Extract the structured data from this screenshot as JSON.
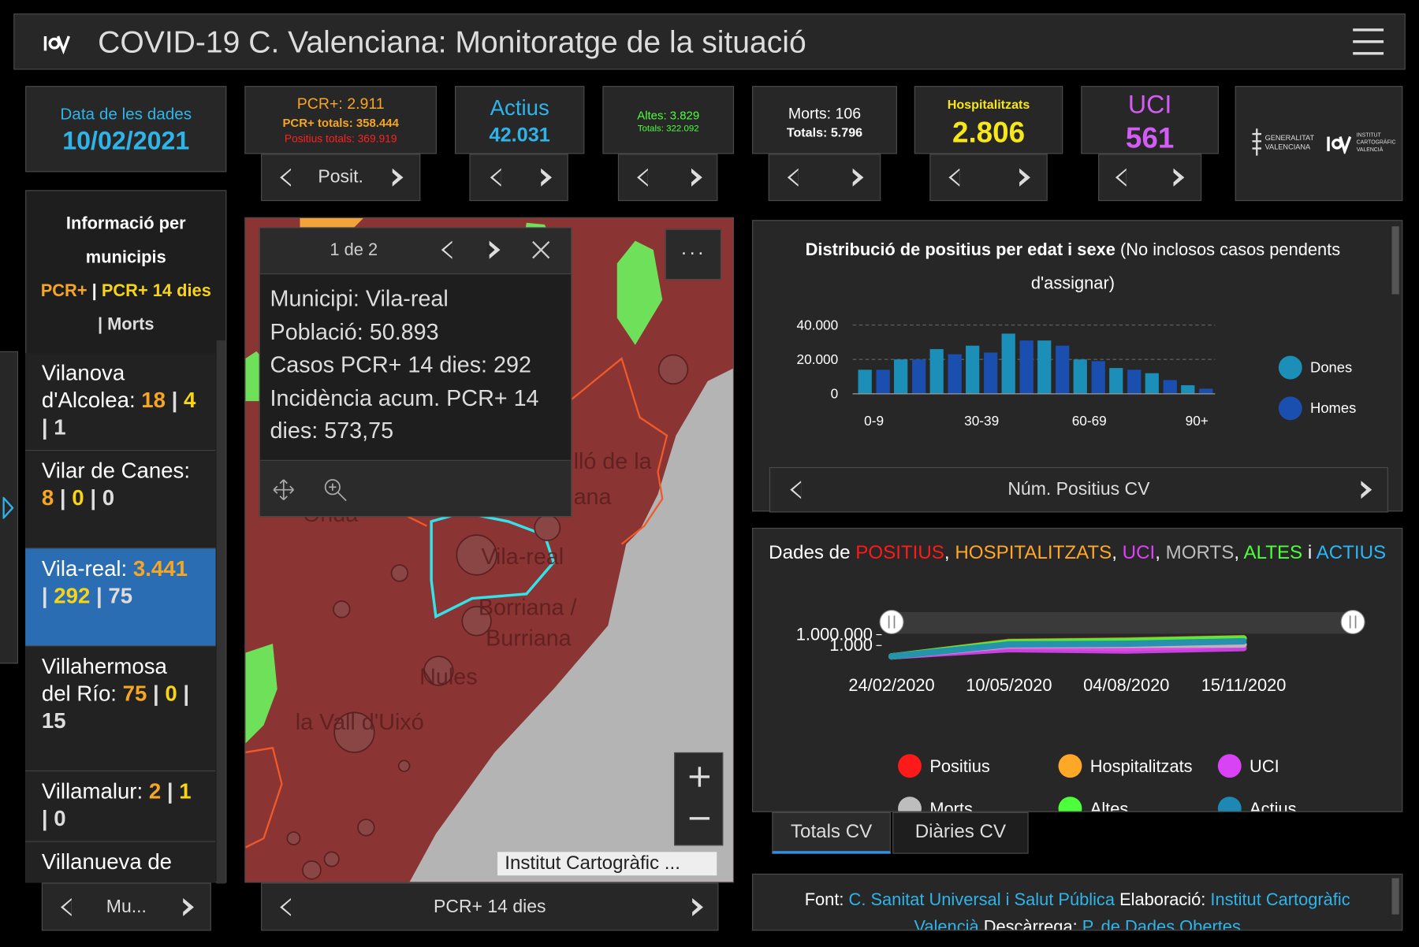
{
  "header": {
    "title": "COVID-19 C. Valenciana: Monitoratge de la situació"
  },
  "cards": {
    "date": {
      "label": "Data de les dades",
      "value": "10/02/2021"
    },
    "pcr": {
      "line1": "PCR+: 2.911",
      "line2": "PCR+ totals: 358.444",
      "line3": "Positius totals: 369.919",
      "nav": "Posit."
    },
    "actius": {
      "label": "Actius",
      "value": "42.031"
    },
    "altes": {
      "line1": "Altes: 3.829",
      "line2": "Totals: 322.092"
    },
    "morts": {
      "line1": "Morts: 106",
      "line2": "Totals: 5.796"
    },
    "hospitalitzats": {
      "label": "Hospitalitzats",
      "value": "2.806"
    },
    "uci": {
      "label": "UCI",
      "value": "561"
    },
    "logos": {
      "gva": [
        "GENERALITAT",
        "VALENCIANA"
      ],
      "icv": [
        "INSTITUT",
        "CARTOGRÀFIC",
        "VALENCIÀ"
      ]
    }
  },
  "sidebar": {
    "title": [
      "Informació per",
      "municipis"
    ],
    "legend": {
      "pcr": "PCR+",
      "sep": "|",
      "pcr14": "PCR+ 14 dies",
      "morts": "| Morts"
    },
    "separator": "|",
    "items": [
      {
        "label": "Vilanova d'Alcolea:",
        "pcr": "18",
        "pcr14": "4",
        "morts": "1"
      },
      {
        "label": "Vilar de Canes:",
        "pcr": "8",
        "pcr14": "0",
        "morts": "0"
      },
      {
        "label": "Vila-real:",
        "pcr": "3.441",
        "pcr14": "292",
        "morts": "75",
        "selected": true
      },
      {
        "label": "Villahermosa del Río:",
        "pcr": "75",
        "pcr14": "0",
        "morts": "15"
      },
      {
        "label": "Villamalur:",
        "pcr": "2",
        "pcr14": "1",
        "morts": "0"
      },
      {
        "label": "Villanueva de"
      }
    ],
    "nav": "Mu..."
  },
  "map": {
    "popup": {
      "counter": "1 de 2",
      "lines": [
        "Municipi: Vila-real",
        "Població: 50.893",
        "Casos PCR+ 14 dies: 292",
        "Incidència acum. PCR+ 14 dies: 573,75"
      ]
    },
    "labels": [
      "lló de la",
      "ana",
      "Onda",
      "Vila-real",
      "Borriana /",
      "Burriana",
      "Nules",
      "la Vall d'Uixó"
    ],
    "attribution": "Institut Cartogràfic ...",
    "nav": "PCR+ 14 dies"
  },
  "age_panel": {
    "nav": "Núm. Positius CV"
  },
  "tabs": [
    "Totals CV",
    "Diàries CV"
  ],
  "footer": {
    "font": "Font:",
    "font_link": "C. Sanitat Universal i Salut Pública",
    "elab": "Elaboració:",
    "elab_link": "Institut Cartogràfic Valencià",
    "desc": "Descàrrega:",
    "desc_link": "P. de Dades Obertes"
  },
  "chart_data": [
    {
      "type": "bar",
      "title": "Distribució de positius per edat i sexe",
      "subtitle": "(No inclosos casos pendents d'assignar)",
      "categories": [
        "0-9",
        null,
        null,
        "30-39",
        null,
        null,
        "60-69",
        null,
        null,
        "90+"
      ],
      "series": [
        {
          "name": "Dones",
          "color": "#1b8fb8",
          "values": [
            14000,
            20000,
            26000,
            28000,
            35000,
            31000,
            20000,
            15000,
            12000,
            5000
          ]
        },
        {
          "name": "Homes",
          "color": "#1a4fb0",
          "values": [
            14000,
            20000,
            23000,
            24000,
            31000,
            28000,
            19000,
            14000,
            8000,
            3000
          ]
        }
      ],
      "ylim": [
        0,
        40000
      ],
      "yticks": [
        0,
        {
          "value": 20000,
          "label": "20.000"
        },
        {
          "value": 40000,
          "label": "40.000"
        }
      ],
      "grid": true,
      "legend": "right"
    },
    {
      "type": "line",
      "title_parts": [
        {
          "text": "Dades de ",
          "color": "#ffffff"
        },
        {
          "text": "POSITIUS",
          "color": "#ff1a1a"
        },
        {
          "text": ", ",
          "color": "#ffffff"
        },
        {
          "text": "HOSPITALITZATS",
          "color": "#ffa726"
        },
        {
          "text": ", ",
          "color": "#ffffff"
        },
        {
          "text": "UCI",
          "color": "#e040fb"
        },
        {
          "text": ", ",
          "color": "#ffffff"
        },
        {
          "text": "MORTS",
          "color": "#bdbdbd"
        },
        {
          "text": ", ",
          "color": "#ffffff"
        },
        {
          "text": "ALTES",
          "color": "#4cff3a"
        },
        {
          "text": " i ",
          "color": "#ffffff"
        },
        {
          "text": "ACTIUS",
          "color": "#29b6f6"
        }
      ],
      "x": [
        "24/02/2020",
        "10/05/2020",
        "04/08/2020",
        "15/11/2020"
      ],
      "series": [
        {
          "name": "Positius",
          "color": "#ff1a1a",
          "values": [
            1,
            11000,
            25000,
            110000
          ]
        },
        {
          "name": "Hospitalitzats",
          "color": "#ffa726",
          "values": [
            1,
            600,
            200,
            1500
          ]
        },
        {
          "name": "UCI",
          "color": "#d942f5",
          "values": [
            1,
            100,
            40,
            200
          ]
        },
        {
          "name": "Morts",
          "color": "#bdbdbd",
          "values": [
            1,
            1300,
            1500,
            2000
          ]
        },
        {
          "name": "Altes",
          "color": "#4cff3a",
          "values": [
            1,
            8000,
            20000,
            90000
          ]
        },
        {
          "name": "Actius",
          "color": "#1e88b5",
          "values": [
            1,
            2000,
            3000,
            15000
          ]
        }
      ],
      "ylim": [
        1,
        1000000
      ],
      "log_scale": true,
      "yticks": [
        {
          "value": 1000000,
          "label": "1.000.000"
        },
        {
          "value": 1000,
          "label": "1.000"
        }
      ],
      "legend": "bottom"
    }
  ]
}
